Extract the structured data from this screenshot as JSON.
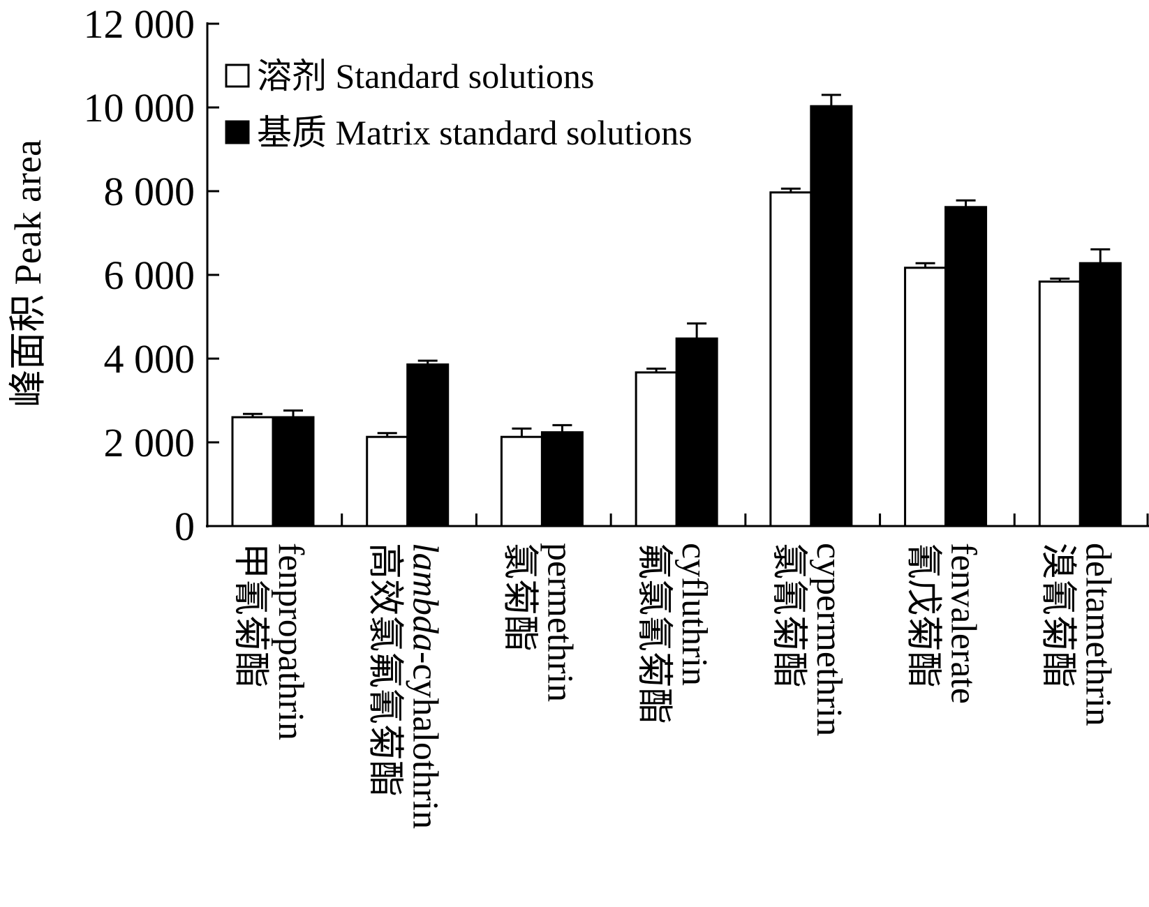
{
  "chart_data": {
    "type": "bar",
    "title": "",
    "xlabel": "",
    "ylabel": "峰面积 Peak area",
    "ylim": [
      0,
      12000
    ],
    "yticks": [
      0,
      2000,
      4000,
      6000,
      8000,
      10000,
      12000
    ],
    "ytick_labels": [
      "0",
      "2 000",
      "4 000",
      "6 000",
      "8 000",
      "10 000",
      "12 000"
    ],
    "grid": false,
    "legend_position": "top-left",
    "categories": [
      {
        "zh": "甲氰菊酯",
        "en": "fenpropathrin"
      },
      {
        "zh": "高效氯氟氰菊酯",
        "en": "lambda-cyhalothrin",
        "en_italic_prefix": "lambda",
        "en_suffix": "-cyhalothrin"
      },
      {
        "zh": "氯菊酯",
        "en": "permethrin"
      },
      {
        "zh": "氟氯氰菊酯",
        "en": "cyfluthrin"
      },
      {
        "zh": "氯氰菊酯",
        "en": "cypermethrin"
      },
      {
        "zh": "氰戊菊酯",
        "en": "fenvalerate"
      },
      {
        "zh": "溴氰菊酯",
        "en": "deltamethrin"
      }
    ],
    "series": [
      {
        "name": "溶剂 Standard solutions",
        "color": "#ffffff",
        "values": [
          2600,
          2130,
          2130,
          3670,
          7970,
          6170,
          5840
        ],
        "errors": [
          80,
          90,
          200,
          90,
          90,
          110,
          70
        ]
      },
      {
        "name": "基质 Matrix standard solutions",
        "color": "#000000",
        "values": [
          2600,
          3860,
          2240,
          4480,
          10030,
          7620,
          6280
        ],
        "errors": [
          160,
          90,
          170,
          360,
          270,
          160,
          330
        ]
      }
    ]
  }
}
